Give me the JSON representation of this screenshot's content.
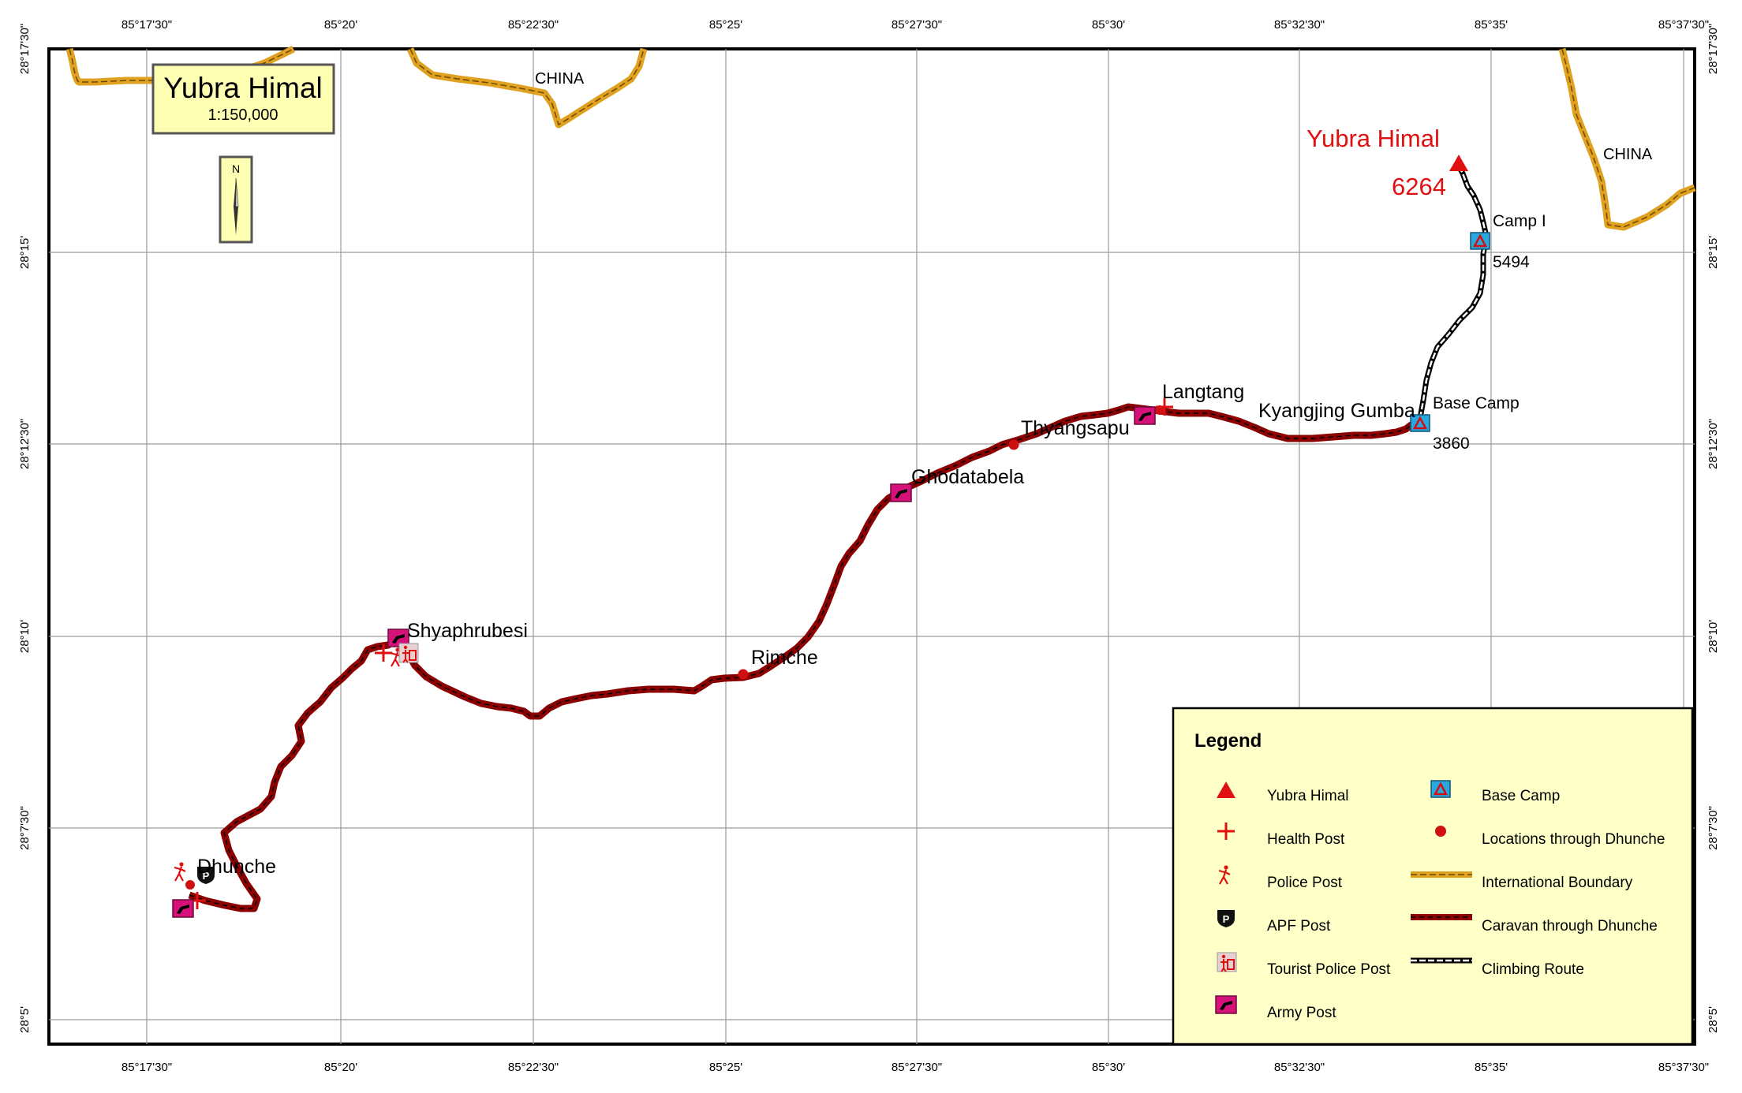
{
  "title": {
    "name": "Yubra Himal",
    "scale": "1:150,000"
  },
  "north_arrow": {
    "label": "N"
  },
  "grid": {
    "longitude_labels": [
      "85°17'30\"",
      "85°20'",
      "85°22'30\"",
      "85°25'",
      "85°27'30\"",
      "85°30'",
      "85°32'30\"",
      "85°35'",
      "85°37'30\""
    ],
    "latitude_labels": [
      "28°17'30\"",
      "28°15'",
      "28°12'30\"",
      "28°10'",
      "28°7'30\"",
      "28°5'"
    ]
  },
  "country_labels": [
    "CHINA",
    "CHINA"
  ],
  "peak": {
    "name": "Yubra Himal",
    "elevation": "6264"
  },
  "camps": [
    {
      "name": "Camp I",
      "elevation": "5494"
    },
    {
      "name": "Base Camp",
      "elevation": "3860"
    }
  ],
  "places": [
    "Dhunche",
    "Shyaphrubesi",
    "Rimche",
    "Ghodatabela",
    "Thyangsapu",
    "Langtang",
    "Kyangjing Gumba"
  ],
  "legend": {
    "title": "Legend",
    "items": [
      {
        "label": "Yubra Himal",
        "icon": "peak-triangle-icon"
      },
      {
        "label": "Health Post",
        "icon": "health-post-cross-icon"
      },
      {
        "label": "Police Post",
        "icon": "police-post-icon"
      },
      {
        "label": "APF Post",
        "icon": "apf-post-shield-icon"
      },
      {
        "label": "Tourist Police Post",
        "icon": "tourist-police-icon"
      },
      {
        "label": "Army Post",
        "icon": "army-post-icon"
      },
      {
        "label": "Base Camp",
        "icon": "base-camp-tent-icon"
      },
      {
        "label": "Locations through Dhunche",
        "icon": "location-dot-icon"
      },
      {
        "label": "International Boundary",
        "icon": "boundary-line-icon"
      },
      {
        "label": "Caravan through Dhunche",
        "icon": "caravan-line-icon"
      },
      {
        "label": "Climbing Route",
        "icon": "climbing-route-line-icon"
      }
    ]
  },
  "colors": {
    "boundary": "#e0a020",
    "caravan_route": "#8b0000",
    "peak": "#e01010",
    "army_post": "#d6127a",
    "base_camp": "#29a8e0",
    "legend_bg": "#ffffc8",
    "title_bg": "#ffffb4"
  }
}
